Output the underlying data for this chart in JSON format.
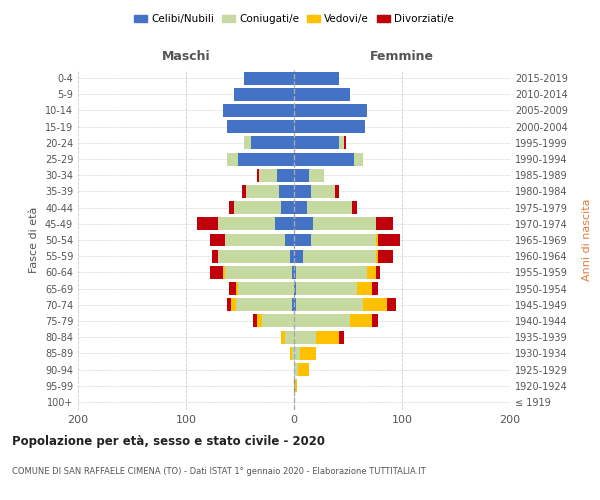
{
  "age_groups": [
    "100+",
    "95-99",
    "90-94",
    "85-89",
    "80-84",
    "75-79",
    "70-74",
    "65-69",
    "60-64",
    "55-59",
    "50-54",
    "45-49",
    "40-44",
    "35-39",
    "30-34",
    "25-29",
    "20-24",
    "15-19",
    "10-14",
    "5-9",
    "0-4"
  ],
  "birth_years": [
    "≤ 1919",
    "1920-1924",
    "1925-1929",
    "1930-1934",
    "1935-1939",
    "1940-1944",
    "1945-1949",
    "1950-1954",
    "1955-1959",
    "1960-1964",
    "1965-1969",
    "1970-1974",
    "1975-1979",
    "1980-1984",
    "1985-1989",
    "1990-1994",
    "1995-1999",
    "2000-2004",
    "2005-2009",
    "2010-2014",
    "2015-2019"
  ],
  "males": {
    "celibi": [
      0,
      0,
      0,
      0,
      0,
      0,
      2,
      0,
      2,
      4,
      8,
      18,
      12,
      14,
      16,
      52,
      40,
      62,
      66,
      56,
      46
    ],
    "coniugati": [
      0,
      0,
      0,
      2,
      8,
      30,
      52,
      52,
      62,
      66,
      56,
      52,
      44,
      30,
      16,
      10,
      6,
      0,
      0,
      0,
      0
    ],
    "vedovi": [
      0,
      0,
      0,
      2,
      4,
      4,
      4,
      2,
      2,
      0,
      0,
      0,
      0,
      0,
      0,
      0,
      0,
      0,
      0,
      0,
      0
    ],
    "divorziati": [
      0,
      0,
      0,
      0,
      0,
      4,
      4,
      6,
      12,
      6,
      14,
      20,
      4,
      4,
      2,
      0,
      0,
      0,
      0,
      0,
      0
    ]
  },
  "females": {
    "nubili": [
      0,
      1,
      0,
      0,
      0,
      0,
      2,
      2,
      2,
      8,
      16,
      18,
      12,
      16,
      14,
      56,
      42,
      66,
      68,
      52,
      42
    ],
    "coniugate": [
      0,
      0,
      4,
      6,
      20,
      52,
      62,
      56,
      66,
      68,
      60,
      58,
      42,
      22,
      14,
      8,
      4,
      0,
      0,
      0,
      0
    ],
    "vedove": [
      0,
      2,
      10,
      14,
      22,
      20,
      22,
      14,
      8,
      2,
      2,
      0,
      0,
      0,
      0,
      0,
      0,
      0,
      0,
      0,
      0
    ],
    "divorziate": [
      0,
      0,
      0,
      0,
      4,
      6,
      8,
      6,
      4,
      14,
      20,
      16,
      4,
      4,
      0,
      0,
      2,
      0,
      0,
      0,
      0
    ]
  },
  "colors": {
    "celibi_nubili": "#4472c4",
    "coniugati": "#c5d9a0",
    "vedovi": "#ffc000",
    "divorziati": "#c0000b"
  },
  "xlim": 200,
  "title": "Popolazione per età, sesso e stato civile - 2020",
  "subtitle": "COMUNE DI SAN RAFFAELE CIMENA (TO) - Dati ISTAT 1° gennaio 2020 - Elaborazione TUTTITALIA.IT",
  "ylabel_left": "Fasce di età",
  "ylabel_right": "Anni di nascita",
  "xlabel_maschi": "Maschi",
  "xlabel_femmine": "Femmine",
  "legend_labels": [
    "Celibi/Nubili",
    "Coniugati/e",
    "Vedovi/e",
    "Divorziati/e"
  ],
  "background_color": "#ffffff",
  "grid_color": "#cccccc"
}
